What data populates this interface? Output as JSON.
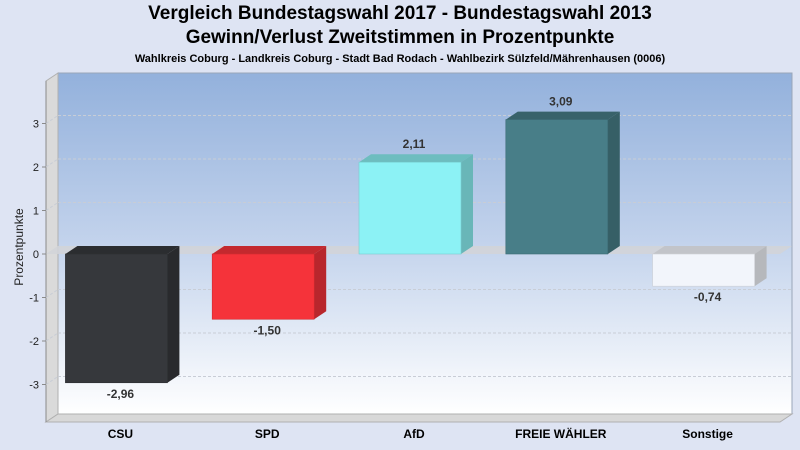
{
  "chart_data": {
    "type": "bar",
    "title": "Vergleich Bundestagswahl 2017 - Bundestagswahl 2013",
    "subtitle": "Gewinn/Verlust Zweitstimmen in Prozentpunkte",
    "subsubtitle": "Wahlkreis Coburg - Landkreis Coburg - Stadt Bad Rodach - Wahlbezirk Sülzfeld/Mährenhausen (0006)",
    "xlabel": "",
    "ylabel": "Prozentpunkte",
    "ylim": [
      -3.8,
      3.9
    ],
    "yticks": [
      3,
      2,
      1,
      0,
      -1,
      -2,
      -3
    ],
    "ytick_labels": [
      "3",
      "2",
      "1",
      "0",
      "-1",
      "-2",
      "-3"
    ],
    "grid": true,
    "categories": [
      "CSU",
      "SPD",
      "AfD",
      "FREIE WÄHLER",
      "Sonstige"
    ],
    "values": [
      -2.96,
      -1.5,
      2.11,
      3.09,
      -0.74
    ],
    "value_labels": [
      "-2,96",
      "-1,50",
      "2,11",
      "3,09",
      "-0,74"
    ],
    "colors": [
      "#36383c",
      "#f5333a",
      "#8cf2f5",
      "#487e88",
      "#f2f5fb"
    ]
  }
}
